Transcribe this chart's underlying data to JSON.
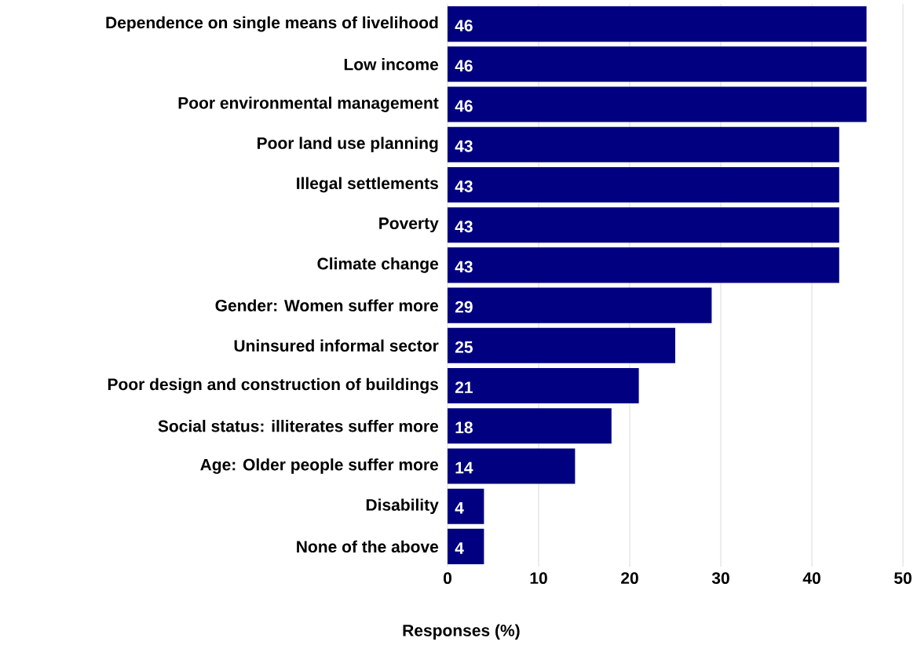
{
  "chart_data": {
    "type": "bar",
    "orientation": "horizontal",
    "xlabel": "Responses (%)",
    "categories": [
      "Dependence on single means of livelihood",
      "Low income",
      "Poor environmental management",
      "Poor land use planning",
      "Illegal settlements",
      "Poverty",
      "Climate change",
      "Gender: Women suffer more",
      "Uninsured informal sector",
      "Poor design and construction of buildings",
      "Social status: illiterates suffer more",
      "Age: Older people suffer more",
      "Disability",
      "None of the above"
    ],
    "values": [
      46,
      46,
      46,
      43,
      43,
      43,
      43,
      29,
      25,
      21,
      18,
      14,
      4,
      4
    ],
    "color": "#000080",
    "xlim": [
      0,
      50
    ],
    "xticks": [
      0,
      10,
      20,
      30,
      40,
      50
    ],
    "grid": "x",
    "data_labels": true
  }
}
